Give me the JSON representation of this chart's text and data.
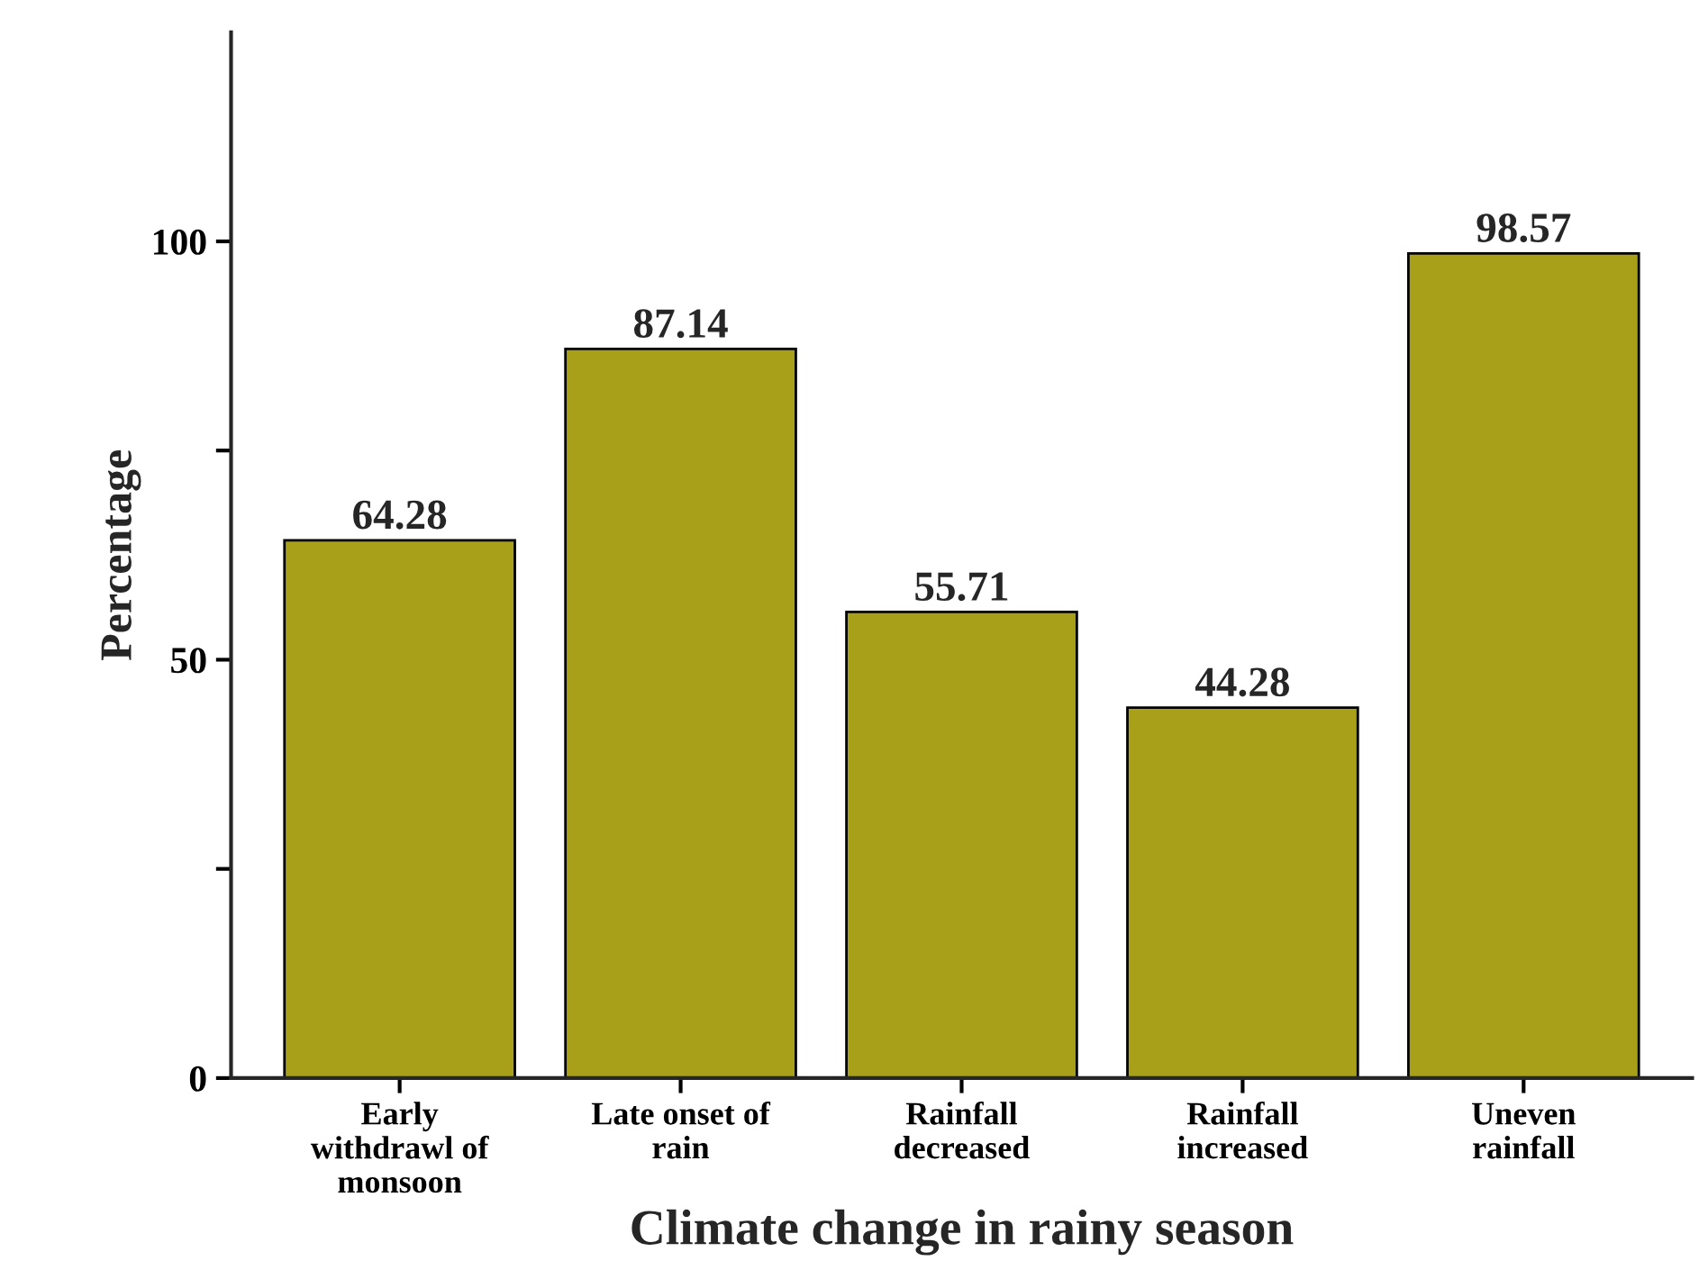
{
  "chart_data": {
    "type": "bar",
    "xlabel": "Climate change in rainy season",
    "ylabel": "Percentage",
    "categories": [
      "Early\nwithdrawl of\nmonsoon",
      "Late onset of\nrain",
      "Rainfall\ndecreased",
      "Rainfall\nincreased",
      "Uneven\nrainfall"
    ],
    "values": [
      64.28,
      87.14,
      55.71,
      44.28,
      98.57
    ],
    "color": "#a8a018",
    "ylim": [
      0,
      125
    ],
    "yticks": [
      0,
      {
        "value": 25,
        "label": null
      },
      50,
      {
        "value": 75,
        "label": null
      },
      100
    ],
    "data_labels": true,
    "grid": false,
    "legend": false
  }
}
